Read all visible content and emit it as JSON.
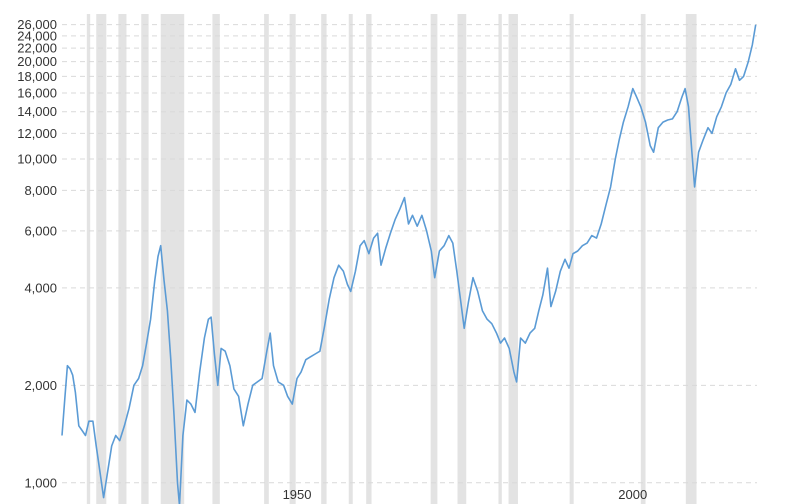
{
  "chart_data": {
    "type": "line",
    "title": "",
    "xlabel": "",
    "ylabel": "",
    "y_scale": "log",
    "ylim": [
      860,
      26500
    ],
    "xlim": [
      1915,
      2018.5
    ],
    "grid": true,
    "legend": "none",
    "y_ticks": [
      {
        "value": 1000,
        "label": "1,000"
      },
      {
        "value": 2000,
        "label": "2,000"
      },
      {
        "value": 4000,
        "label": "4,000"
      },
      {
        "value": 6000,
        "label": "6,000"
      },
      {
        "value": 8000,
        "label": "8,000"
      },
      {
        "value": 10000,
        "label": "10,000"
      },
      {
        "value": 12000,
        "label": "12,000"
      },
      {
        "value": 14000,
        "label": "14,000"
      },
      {
        "value": 16000,
        "label": "16,000"
      },
      {
        "value": 18000,
        "label": "18,000"
      },
      {
        "value": 20000,
        "label": "20,000"
      },
      {
        "value": 22000,
        "label": "22,000"
      },
      {
        "value": 24000,
        "label": "24,000"
      },
      {
        "value": 26000,
        "label": "26,000"
      }
    ],
    "x_ticks": [
      {
        "value": 1950,
        "label": "1950"
      },
      {
        "value": 2000,
        "label": "2000"
      }
    ],
    "shaded_periods": [
      [
        1918.7,
        1919.2
      ],
      [
        1920.1,
        1921.6
      ],
      [
        1923.4,
        1924.6
      ],
      [
        1926.8,
        1927.9
      ],
      [
        1929.7,
        1933.2
      ],
      [
        1937.4,
        1938.5
      ],
      [
        1945.1,
        1945.8
      ],
      [
        1948.9,
        1949.8
      ],
      [
        1953.6,
        1954.4
      ],
      [
        1957.7,
        1958.3
      ],
      [
        1960.3,
        1961.1
      ],
      [
        1969.9,
        1970.9
      ],
      [
        1973.9,
        1975.2
      ],
      [
        1980.0,
        1980.5
      ],
      [
        1981.5,
        1982.9
      ],
      [
        1990.6,
        1991.2
      ],
      [
        2001.2,
        2001.9
      ],
      [
        2007.9,
        2009.5
      ]
    ],
    "series": [
      {
        "color": "#5b9bd5",
        "points": [
          [
            1915.0,
            1400
          ],
          [
            1915.4,
            1800
          ],
          [
            1915.8,
            2300
          ],
          [
            1916.2,
            2250
          ],
          [
            1916.6,
            2150
          ],
          [
            1917.0,
            1900
          ],
          [
            1917.5,
            1500
          ],
          [
            1918.0,
            1450
          ],
          [
            1918.5,
            1400
          ],
          [
            1919.0,
            1550
          ],
          [
            1919.6,
            1550
          ],
          [
            1920.1,
            1300
          ],
          [
            1920.6,
            1100
          ],
          [
            1921.2,
            900
          ],
          [
            1921.7,
            1050
          ],
          [
            1922.4,
            1300
          ],
          [
            1923.0,
            1400
          ],
          [
            1923.6,
            1350
          ],
          [
            1924.3,
            1500
          ],
          [
            1925.0,
            1700
          ],
          [
            1925.7,
            2000
          ],
          [
            1926.4,
            2100
          ],
          [
            1927.0,
            2300
          ],
          [
            1927.6,
            2700
          ],
          [
            1928.2,
            3200
          ],
          [
            1928.8,
            4200
          ],
          [
            1929.3,
            5000
          ],
          [
            1929.7,
            5400
          ],
          [
            1930.2,
            4200
          ],
          [
            1930.7,
            3400
          ],
          [
            1931.2,
            2400
          ],
          [
            1931.7,
            1600
          ],
          [
            1932.2,
            1000
          ],
          [
            1932.5,
            850
          ],
          [
            1933.0,
            1400
          ],
          [
            1933.6,
            1800
          ],
          [
            1934.2,
            1750
          ],
          [
            1934.8,
            1650
          ],
          [
            1935.5,
            2200
          ],
          [
            1936.2,
            2800
          ],
          [
            1936.8,
            3200
          ],
          [
            1937.2,
            3250
          ],
          [
            1937.7,
            2500
          ],
          [
            1938.2,
            2000
          ],
          [
            1938.7,
            2600
          ],
          [
            1939.3,
            2550
          ],
          [
            1940.0,
            2300
          ],
          [
            1940.6,
            1950
          ],
          [
            1941.3,
            1850
          ],
          [
            1942.0,
            1500
          ],
          [
            1942.7,
            1750
          ],
          [
            1943.4,
            2000
          ],
          [
            1944.1,
            2050
          ],
          [
            1944.8,
            2100
          ],
          [
            1945.5,
            2550
          ],
          [
            1946.0,
            2900
          ],
          [
            1946.5,
            2300
          ],
          [
            1947.2,
            2050
          ],
          [
            1948.0,
            2000
          ],
          [
            1948.6,
            1850
          ],
          [
            1949.3,
            1750
          ],
          [
            1950.0,
            2100
          ],
          [
            1950.6,
            2200
          ],
          [
            1951.3,
            2400
          ],
          [
            1952.0,
            2450
          ],
          [
            1952.7,
            2500
          ],
          [
            1953.4,
            2550
          ],
          [
            1954.1,
            3050
          ],
          [
            1954.8,
            3700
          ],
          [
            1955.5,
            4300
          ],
          [
            1956.2,
            4700
          ],
          [
            1956.9,
            4500
          ],
          [
            1957.5,
            4100
          ],
          [
            1958.0,
            3900
          ],
          [
            1958.7,
            4500
          ],
          [
            1959.4,
            5400
          ],
          [
            1960.0,
            5600
          ],
          [
            1960.7,
            5100
          ],
          [
            1961.4,
            5700
          ],
          [
            1962.0,
            5900
          ],
          [
            1962.5,
            4700
          ],
          [
            1963.2,
            5300
          ],
          [
            1963.9,
            5900
          ],
          [
            1964.6,
            6500
          ],
          [
            1965.3,
            7000
          ],
          [
            1966.0,
            7600
          ],
          [
            1966.6,
            6300
          ],
          [
            1967.2,
            6700
          ],
          [
            1967.9,
            6200
          ],
          [
            1968.6,
            6700
          ],
          [
            1969.3,
            6000
          ],
          [
            1970.0,
            5200
          ],
          [
            1970.5,
            4300
          ],
          [
            1971.2,
            5200
          ],
          [
            1971.9,
            5400
          ],
          [
            1972.6,
            5800
          ],
          [
            1973.2,
            5500
          ],
          [
            1973.8,
            4500
          ],
          [
            1974.4,
            3600
          ],
          [
            1974.9,
            3000
          ],
          [
            1975.5,
            3600
          ],
          [
            1976.2,
            4300
          ],
          [
            1976.9,
            3900
          ],
          [
            1977.6,
            3400
          ],
          [
            1978.3,
            3200
          ],
          [
            1979.0,
            3100
          ],
          [
            1979.7,
            2900
          ],
          [
            1980.3,
            2700
          ],
          [
            1980.9,
            2800
          ],
          [
            1981.6,
            2600
          ],
          [
            1982.3,
            2200
          ],
          [
            1982.7,
            2050
          ],
          [
            1983.3,
            2800
          ],
          [
            1984.0,
            2700
          ],
          [
            1984.7,
            2900
          ],
          [
            1985.4,
            3000
          ],
          [
            1986.0,
            3400
          ],
          [
            1986.6,
            3800
          ],
          [
            1987.3,
            4600
          ],
          [
            1987.8,
            3500
          ],
          [
            1988.5,
            3900
          ],
          [
            1989.2,
            4500
          ],
          [
            1989.9,
            4900
          ],
          [
            1990.5,
            4600
          ],
          [
            1991.1,
            5100
          ],
          [
            1991.8,
            5200
          ],
          [
            1992.5,
            5400
          ],
          [
            1993.2,
            5500
          ],
          [
            1993.9,
            5800
          ],
          [
            1994.6,
            5700
          ],
          [
            1995.3,
            6300
          ],
          [
            1996.0,
            7200
          ],
          [
            1996.7,
            8200
          ],
          [
            1997.4,
            10000
          ],
          [
            1998.0,
            11500
          ],
          [
            1998.6,
            13000
          ],
          [
            1999.3,
            14500
          ],
          [
            2000.0,
            16500
          ],
          [
            2000.6,
            15500
          ],
          [
            2001.2,
            14500
          ],
          [
            2001.9,
            13000
          ],
          [
            2002.6,
            11000
          ],
          [
            2003.1,
            10500
          ],
          [
            2003.8,
            12500
          ],
          [
            2004.5,
            13000
          ],
          [
            2005.2,
            13200
          ],
          [
            2005.9,
            13300
          ],
          [
            2006.6,
            14000
          ],
          [
            2007.3,
            15500
          ],
          [
            2007.8,
            16500
          ],
          [
            2008.3,
            14500
          ],
          [
            2008.8,
            10500
          ],
          [
            2009.2,
            8200
          ],
          [
            2009.8,
            10500
          ],
          [
            2010.5,
            11500
          ],
          [
            2011.2,
            12500
          ],
          [
            2011.8,
            12000
          ],
          [
            2012.5,
            13500
          ],
          [
            2013.2,
            14500
          ],
          [
            2013.9,
            16000
          ],
          [
            2014.6,
            17000
          ],
          [
            2015.3,
            19000
          ],
          [
            2015.9,
            17500
          ],
          [
            2016.5,
            18000
          ],
          [
            2017.2,
            20000
          ],
          [
            2017.8,
            22500
          ],
          [
            2018.3,
            26000
          ]
        ]
      }
    ]
  }
}
